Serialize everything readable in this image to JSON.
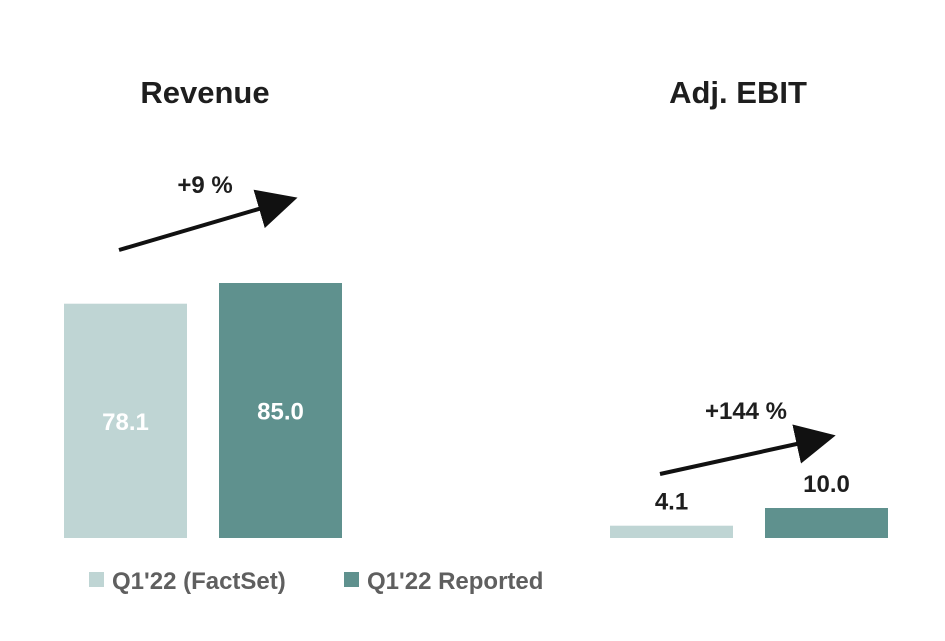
{
  "chart_data": [
    {
      "type": "bar",
      "title": "Revenue",
      "categories": [
        "Q1'22 (FactSet)",
        "Q1'22 Reported"
      ],
      "values": [
        78.1,
        85.0
      ],
      "value_labels": [
        "78.1",
        "85.0"
      ],
      "change_label": "+9 %",
      "label_position": "inside",
      "xlabel": "",
      "ylabel": "",
      "ylim": [
        0,
        96
      ],
      "grid": false
    },
    {
      "type": "bar",
      "title": "Adj. EBIT",
      "categories": [
        "Q1'22 (FactSet)",
        "Q1'22 Reported"
      ],
      "values": [
        4.1,
        10.0
      ],
      "value_labels": [
        "4.1",
        "10.0"
      ],
      "change_label": "+144 %",
      "label_position": "outside",
      "xlabel": "",
      "ylabel": "",
      "ylim": [
        0,
        96
      ],
      "grid": false
    }
  ],
  "legend": {
    "placement": "bottom-left",
    "items": [
      {
        "label": "Q1'22 (FactSet)",
        "color": "#bfd5d4"
      },
      {
        "label": "Q1'22 Reported",
        "color": "#5f918e"
      }
    ]
  },
  "colors": {
    "factset": "#bfd5d4",
    "reported": "#5f918e",
    "text": "#1e1e1e",
    "legend_text": "#5f5f5f",
    "arrow": "#111111"
  }
}
